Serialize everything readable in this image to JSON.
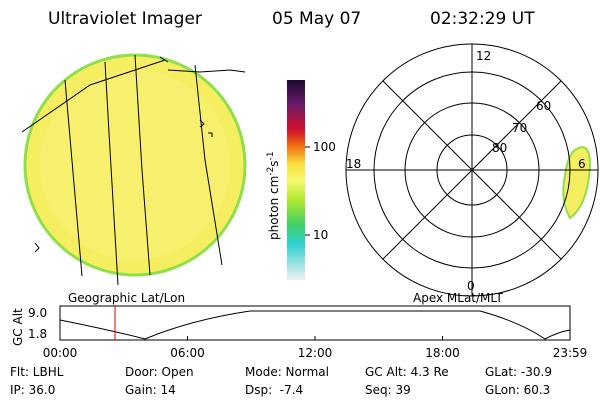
{
  "header": {
    "title": "Ultraviolet Imager",
    "date": "05 May 07",
    "time": "02:32:29 UT"
  },
  "image_panel": {
    "label": "Geographic Lat/Lon"
  },
  "colorbar": {
    "unit": {
      "base": "photon cm",
      "exp1": "-2",
      "mid": "s",
      "exp2": "-1"
    },
    "ticks": [
      "100",
      "10"
    ]
  },
  "polar_panel": {
    "label": "Apex MLat/MLT",
    "mlt_labels": [
      "12",
      "18",
      "6",
      "0"
    ],
    "lat_labels": [
      "60",
      "70",
      "80"
    ]
  },
  "altitude_panel": {
    "ylabel": "GC Alt",
    "yticks": [
      "9.0",
      "1.8"
    ],
    "xticks": [
      "00:00",
      "06:00",
      "12:00",
      "18:00",
      "23:59"
    ]
  },
  "status": {
    "rows": [
      [
        "Flt: LBHL",
        "Door: Open",
        "Mode: Normal",
        "GC Alt: 4.3 Re",
        "GLat: -30.9"
      ],
      [
        "IP: 36.0",
        "Gain: 14",
        "Dsp:  -7.4",
        "Seq: 39",
        "GLon: 60.3"
      ]
    ]
  }
}
